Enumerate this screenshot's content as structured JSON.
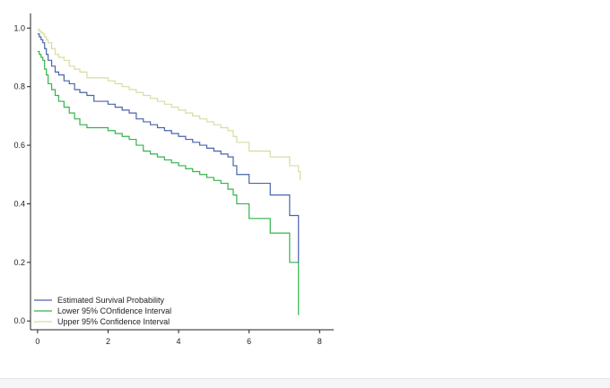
{
  "chart_data": {
    "type": "line",
    "title": "",
    "xlabel": "",
    "ylabel": "",
    "xlim": [
      -0.2,
      8.4
    ],
    "ylim": [
      -0.03,
      1.05
    ],
    "x_ticks": [
      0,
      2,
      4,
      6,
      8
    ],
    "y_ticks": [
      0.0,
      0.2,
      0.4,
      0.6,
      0.8,
      1.0
    ],
    "x_tick_labels": [
      "0",
      "2",
      "4",
      "6",
      "8"
    ],
    "y_tick_labels": [
      "0.0",
      "0.2",
      "0.4",
      "0.6",
      "0.8",
      "1.0"
    ],
    "grid": false,
    "legend_position": "bottom-left",
    "step": true,
    "series": [
      {
        "name": "Estimated Survival Probability",
        "color": "#4a64ad",
        "x": [
          0,
          0.05,
          0.1,
          0.15,
          0.2,
          0.25,
          0.3,
          0.4,
          0.5,
          0.6,
          0.75,
          0.9,
          1.05,
          1.2,
          1.4,
          1.6,
          2.0,
          2.2,
          2.4,
          2.6,
          2.8,
          3.0,
          3.2,
          3.4,
          3.6,
          3.8,
          4.0,
          4.2,
          4.4,
          4.6,
          4.8,
          5.0,
          5.2,
          5.4,
          5.55,
          5.65,
          6.0,
          6.6,
          7.15,
          7.4
        ],
        "y": [
          0.98,
          0.97,
          0.96,
          0.95,
          0.93,
          0.91,
          0.89,
          0.87,
          0.85,
          0.84,
          0.82,
          0.81,
          0.79,
          0.78,
          0.77,
          0.75,
          0.74,
          0.73,
          0.72,
          0.71,
          0.69,
          0.68,
          0.67,
          0.66,
          0.65,
          0.64,
          0.63,
          0.62,
          0.61,
          0.6,
          0.59,
          0.58,
          0.57,
          0.56,
          0.53,
          0.5,
          0.47,
          0.43,
          0.36,
          0.2
        ]
      },
      {
        "name": "Lower 95% COnfidence Interval",
        "color": "#33b44a",
        "x": [
          0,
          0.05,
          0.1,
          0.15,
          0.2,
          0.25,
          0.3,
          0.4,
          0.5,
          0.6,
          0.75,
          0.9,
          1.05,
          1.2,
          1.4,
          2.0,
          2.2,
          2.4,
          2.6,
          2.8,
          3.0,
          3.2,
          3.4,
          3.6,
          3.8,
          4.0,
          4.2,
          4.4,
          4.6,
          4.8,
          5.0,
          5.2,
          5.4,
          5.55,
          5.65,
          6.0,
          6.6,
          7.15,
          7.4
        ],
        "y": [
          0.92,
          0.91,
          0.9,
          0.89,
          0.86,
          0.84,
          0.81,
          0.79,
          0.77,
          0.75,
          0.73,
          0.71,
          0.69,
          0.67,
          0.66,
          0.65,
          0.64,
          0.63,
          0.62,
          0.6,
          0.58,
          0.57,
          0.56,
          0.55,
          0.54,
          0.53,
          0.52,
          0.51,
          0.5,
          0.49,
          0.48,
          0.47,
          0.45,
          0.43,
          0.4,
          0.35,
          0.3,
          0.2,
          0.02
        ]
      },
      {
        "name": "Upper 95% Confidence Interval",
        "color": "#d9dca2",
        "x": [
          0,
          0.05,
          0.1,
          0.15,
          0.2,
          0.25,
          0.3,
          0.4,
          0.5,
          0.6,
          0.75,
          0.9,
          1.05,
          1.2,
          1.4,
          2.0,
          2.2,
          2.4,
          2.6,
          2.8,
          3.0,
          3.2,
          3.4,
          3.6,
          3.8,
          4.0,
          4.2,
          4.4,
          4.6,
          4.8,
          5.0,
          5.2,
          5.4,
          5.55,
          5.65,
          6.0,
          6.6,
          7.15,
          7.4,
          7.45
        ],
        "y": [
          0.995,
          0.99,
          0.985,
          0.98,
          0.97,
          0.96,
          0.95,
          0.93,
          0.91,
          0.9,
          0.89,
          0.87,
          0.86,
          0.85,
          0.83,
          0.82,
          0.81,
          0.8,
          0.79,
          0.78,
          0.77,
          0.76,
          0.75,
          0.74,
          0.73,
          0.72,
          0.71,
          0.7,
          0.69,
          0.68,
          0.67,
          0.66,
          0.65,
          0.63,
          0.61,
          0.58,
          0.56,
          0.53,
          0.51,
          0.48
        ]
      }
    ]
  }
}
